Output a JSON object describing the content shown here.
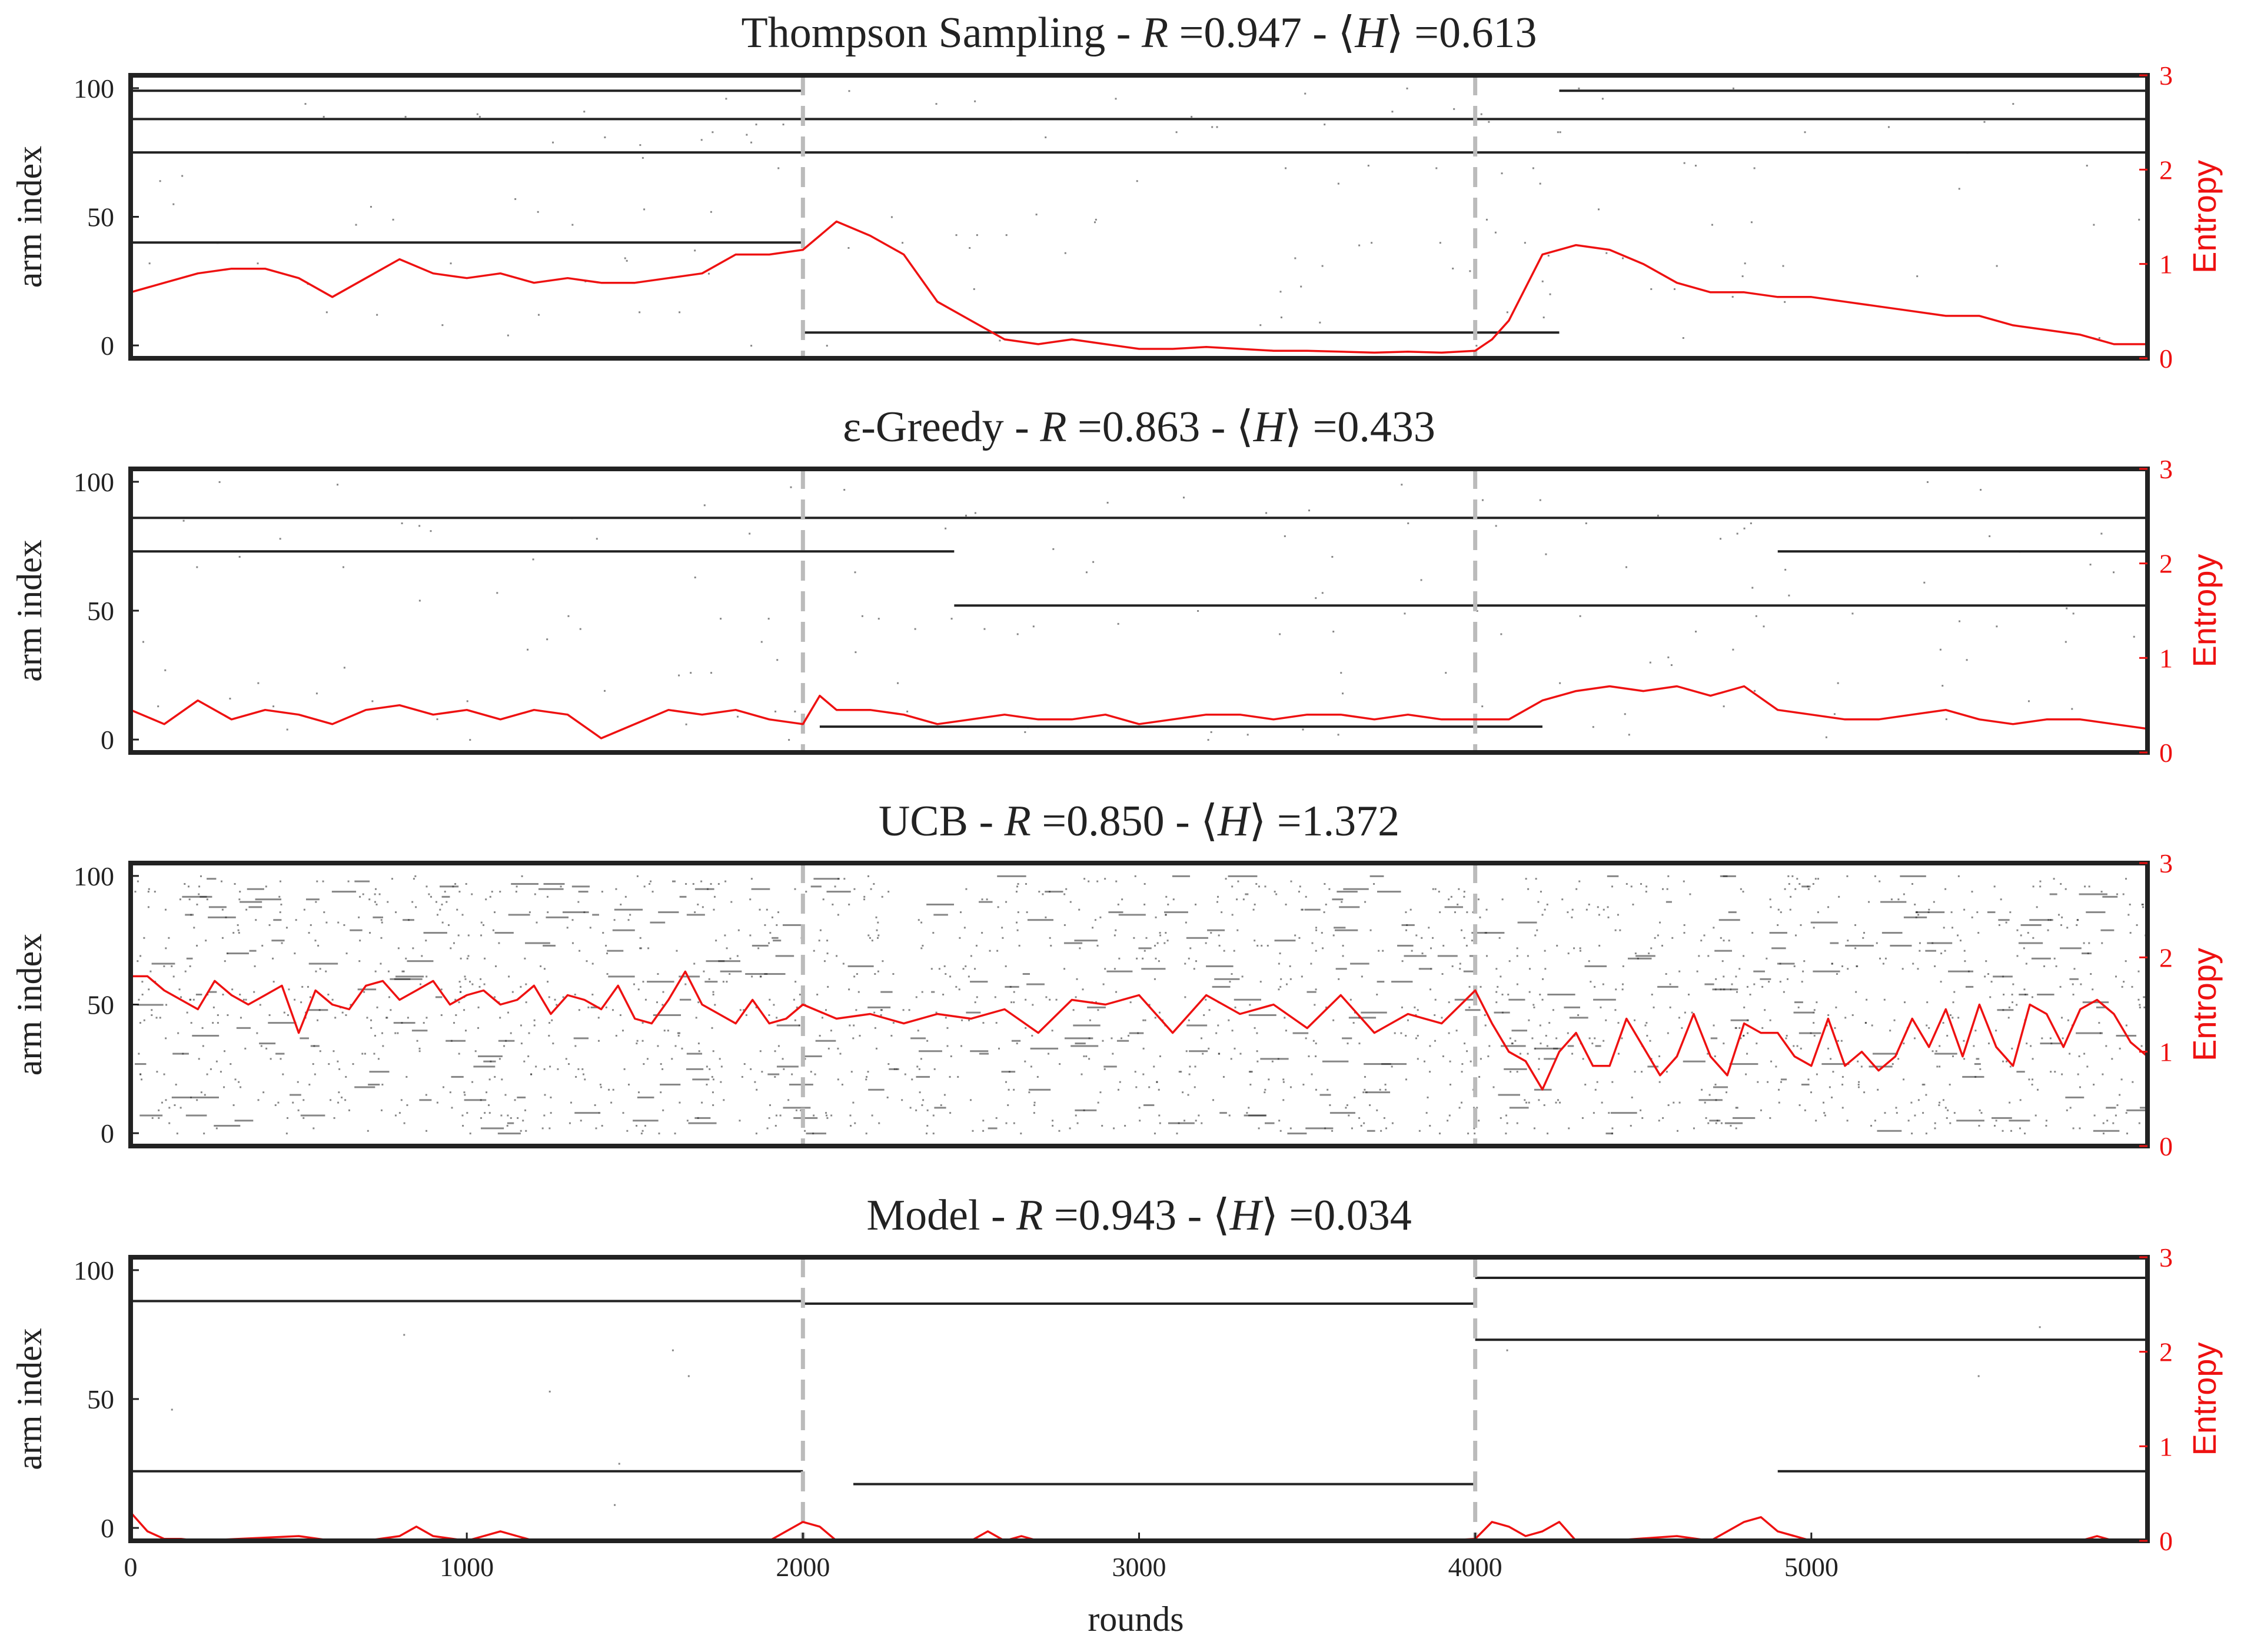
{
  "chart_data": {
    "type": "line",
    "description_x_axis": "rounds",
    "xlabel": "rounds",
    "xlim": [
      0,
      6000
    ],
    "x_ticks": [
      "0",
      "1000",
      "2000",
      "3000",
      "4000",
      "5000"
    ],
    "change_points": [
      2000,
      4000
    ],
    "left_axis": {
      "label": "arm index",
      "ylim": [
        -5,
        105
      ],
      "ticks": [
        "0",
        "50",
        "100"
      ]
    },
    "right_axis": {
      "label": "Entropy",
      "ylim": [
        0,
        3
      ],
      "ticks": [
        "0",
        "1",
        "2",
        "3"
      ]
    },
    "colors": {
      "entropy": "#ee1111",
      "arms": "#222222",
      "change_point": "#bbbbbb",
      "frame": "#222222"
    },
    "panels": [
      {
        "name": "Thompson Sampling",
        "title_prefix": "Thompson Sampling - ",
        "R": "0.947",
        "H": "0.613",
        "entropy_series": {
          "name": "Entropy",
          "x": [
            0,
            100,
            200,
            300,
            400,
            500,
            600,
            700,
            800,
            900,
            1000,
            1100,
            1200,
            1300,
            1400,
            1500,
            1600,
            1700,
            1800,
            1900,
            2000,
            2050,
            2100,
            2200,
            2300,
            2400,
            2500,
            2600,
            2700,
            2800,
            2900,
            3000,
            3100,
            3200,
            3300,
            3400,
            3500,
            3600,
            3700,
            3800,
            3900,
            4000,
            4050,
            4100,
            4200,
            4300,
            4400,
            4500,
            4600,
            4700,
            4800,
            4900,
            5000,
            5100,
            5200,
            5300,
            5400,
            5500,
            5600,
            5700,
            5800,
            5900,
            6000
          ],
          "y": [
            0.7,
            0.8,
            0.9,
            0.95,
            0.95,
            0.85,
            0.65,
            0.85,
            1.05,
            0.9,
            0.85,
            0.9,
            0.8,
            0.85,
            0.8,
            0.8,
            0.85,
            0.9,
            1.1,
            1.1,
            1.15,
            1.3,
            1.45,
            1.3,
            1.1,
            0.6,
            0.4,
            0.2,
            0.15,
            0.2,
            0.15,
            0.1,
            0.1,
            0.12,
            0.1,
            0.08,
            0.08,
            0.07,
            0.06,
            0.07,
            0.06,
            0.08,
            0.2,
            0.4,
            1.1,
            1.2,
            1.15,
            1.0,
            0.8,
            0.7,
            0.7,
            0.65,
            0.65,
            0.6,
            0.55,
            0.5,
            0.45,
            0.45,
            0.35,
            0.3,
            0.25,
            0.15,
            0.15
          ]
        },
        "dominant_arms": [
          {
            "arm": 75,
            "from": 0,
            "to": 6000
          },
          {
            "arm": 88,
            "from": 0,
            "to": 6000
          },
          {
            "arm": 99,
            "from": 0,
            "to": 2000
          },
          {
            "arm": 99,
            "from": 4250,
            "to": 6000
          },
          {
            "arm": 40,
            "from": 0,
            "to": 2000
          },
          {
            "arm": 5,
            "from": 2000,
            "to": 4250
          }
        ]
      },
      {
        "name": "ε-Greedy",
        "title_prefix": "ε-Greedy - ",
        "R": "0.863",
        "H": "0.433",
        "entropy_series": {
          "name": "Entropy",
          "x": [
            0,
            100,
            200,
            300,
            400,
            500,
            600,
            700,
            800,
            900,
            1000,
            1100,
            1200,
            1300,
            1400,
            1500,
            1600,
            1700,
            1800,
            1900,
            2000,
            2050,
            2100,
            2200,
            2300,
            2400,
            2500,
            2600,
            2700,
            2800,
            2900,
            3000,
            3100,
            3200,
            3300,
            3400,
            3500,
            3600,
            3700,
            3800,
            3900,
            4000,
            4100,
            4200,
            4300,
            4400,
            4500,
            4600,
            4700,
            4800,
            4900,
            5000,
            5100,
            5200,
            5300,
            5400,
            5500,
            5600,
            5700,
            5800,
            5900,
            6000
          ],
          "y": [
            0.45,
            0.3,
            0.55,
            0.35,
            0.45,
            0.4,
            0.3,
            0.45,
            0.5,
            0.4,
            0.45,
            0.35,
            0.45,
            0.4,
            0.15,
            0.3,
            0.45,
            0.4,
            0.45,
            0.35,
            0.3,
            0.6,
            0.45,
            0.45,
            0.4,
            0.3,
            0.35,
            0.4,
            0.35,
            0.35,
            0.4,
            0.3,
            0.35,
            0.4,
            0.4,
            0.35,
            0.4,
            0.4,
            0.35,
            0.4,
            0.35,
            0.35,
            0.35,
            0.55,
            0.65,
            0.7,
            0.65,
            0.7,
            0.6,
            0.7,
            0.45,
            0.4,
            0.35,
            0.35,
            0.4,
            0.45,
            0.35,
            0.3,
            0.35,
            0.35,
            0.3,
            0.25
          ]
        },
        "dominant_arms": [
          {
            "arm": 86,
            "from": 0,
            "to": 6000
          },
          {
            "arm": 73,
            "from": 0,
            "to": 2450
          },
          {
            "arm": 73,
            "from": 4900,
            "to": 6000
          },
          {
            "arm": 52,
            "from": 2450,
            "to": 6000
          },
          {
            "arm": 5,
            "from": 2050,
            "to": 4200
          }
        ]
      },
      {
        "name": "UCB",
        "title_prefix": "UCB - ",
        "R": "0.850",
        "H": "1.372",
        "entropy_series": {
          "name": "Entropy",
          "x": [
            0,
            50,
            100,
            150,
            200,
            250,
            300,
            350,
            400,
            450,
            500,
            550,
            600,
            650,
            700,
            750,
            800,
            850,
            900,
            950,
            1000,
            1050,
            1100,
            1150,
            1200,
            1250,
            1300,
            1350,
            1400,
            1450,
            1500,
            1550,
            1600,
            1650,
            1700,
            1750,
            1800,
            1850,
            1900,
            1950,
            2000,
            2100,
            2200,
            2300,
            2400,
            2500,
            2600,
            2700,
            2800,
            2900,
            3000,
            3100,
            3200,
            3300,
            3400,
            3500,
            3600,
            3700,
            3800,
            3900,
            4000,
            4050,
            4100,
            4150,
            4200,
            4250,
            4300,
            4350,
            4400,
            4450,
            4500,
            4550,
            4600,
            4650,
            4700,
            4750,
            4800,
            4850,
            4900,
            4950,
            5000,
            5050,
            5100,
            5150,
            5200,
            5250,
            5300,
            5350,
            5400,
            5450,
            5500,
            5550,
            5600,
            5650,
            5700,
            5750,
            5800,
            5850,
            5900,
            5950,
            6000
          ],
          "y": [
            1.8,
            1.8,
            1.65,
            1.55,
            1.45,
            1.75,
            1.6,
            1.5,
            1.6,
            1.7,
            1.2,
            1.65,
            1.5,
            1.45,
            1.7,
            1.75,
            1.55,
            1.65,
            1.75,
            1.5,
            1.6,
            1.65,
            1.5,
            1.55,
            1.7,
            1.4,
            1.6,
            1.55,
            1.45,
            1.7,
            1.35,
            1.3,
            1.55,
            1.85,
            1.5,
            1.4,
            1.3,
            1.55,
            1.3,
            1.35,
            1.5,
            1.35,
            1.4,
            1.3,
            1.4,
            1.35,
            1.45,
            1.2,
            1.55,
            1.5,
            1.6,
            1.2,
            1.6,
            1.4,
            1.5,
            1.25,
            1.6,
            1.2,
            1.4,
            1.3,
            1.65,
            1.3,
            1.0,
            0.9,
            0.6,
            1.0,
            1.2,
            0.85,
            0.85,
            1.35,
            1.05,
            0.75,
            0.95,
            1.4,
            0.95,
            0.75,
            1.3,
            1.2,
            1.2,
            0.95,
            0.85,
            1.35,
            0.85,
            1.0,
            0.8,
            0.95,
            1.35,
            1.05,
            1.45,
            0.95,
            1.5,
            1.05,
            0.85,
            1.5,
            1.4,
            1.05,
            1.45,
            1.55,
            1.4,
            1.1,
            0.95
          ]
        },
        "dominant_arms": []
      },
      {
        "name": "Model",
        "title_prefix": "Model - ",
        "R": "0.943",
        "H": "0.034",
        "entropy_series": {
          "name": "Entropy",
          "x": [
            0,
            50,
            100,
            150,
            200,
            500,
            600,
            700,
            800,
            850,
            900,
            1000,
            1100,
            1150,
            1200,
            1300,
            1400,
            1500,
            1600,
            1700,
            1800,
            1900,
            1950,
            2000,
            2050,
            2100,
            2200,
            2300,
            2400,
            2500,
            2550,
            2600,
            2650,
            2700,
            2800,
            3000,
            3100,
            3200,
            3300,
            3400,
            3500,
            3600,
            3700,
            3800,
            3900,
            4000,
            4050,
            4100,
            4150,
            4200,
            4250,
            4300,
            4400,
            4600,
            4700,
            4800,
            4850,
            4900,
            5000,
            5200,
            5300,
            5500,
            5600,
            5800,
            5850,
            5900,
            6000
          ],
          "y": [
            0.3,
            0.1,
            0.02,
            0.02,
            0.0,
            0.05,
            0.0,
            0.0,
            0.05,
            0.15,
            0.05,
            0.0,
            0.1,
            0.05,
            0.0,
            0.0,
            0.0,
            0.0,
            0.0,
            0.0,
            0.0,
            0.0,
            0.1,
            0.2,
            0.15,
            0.0,
            0.0,
            0.0,
            0.0,
            0.0,
            0.1,
            0.0,
            0.05,
            0.0,
            0.0,
            0.0,
            0.0,
            0.0,
            0.0,
            0.0,
            0.0,
            0.0,
            0.0,
            0.0,
            0.0,
            0.02,
            0.2,
            0.15,
            0.05,
            0.1,
            0.2,
            0.0,
            0.0,
            0.05,
            0.0,
            0.2,
            0.25,
            0.1,
            0.0,
            0.0,
            0.0,
            0.0,
            0.0,
            0.0,
            0.05,
            0.0,
            0.0
          ]
        },
        "dominant_arms": [
          {
            "arm": 88,
            "from": 0,
            "to": 2000
          },
          {
            "arm": 22,
            "from": 0,
            "to": 2000
          },
          {
            "arm": 87,
            "from": 2000,
            "to": 4000
          },
          {
            "arm": 17,
            "from": 2150,
            "to": 4000
          },
          {
            "arm": 97,
            "from": 4000,
            "to": 6000
          },
          {
            "arm": 73,
            "from": 4000,
            "to": 6000
          },
          {
            "arm": 22,
            "from": 4900,
            "to": 6000
          }
        ]
      }
    ]
  }
}
